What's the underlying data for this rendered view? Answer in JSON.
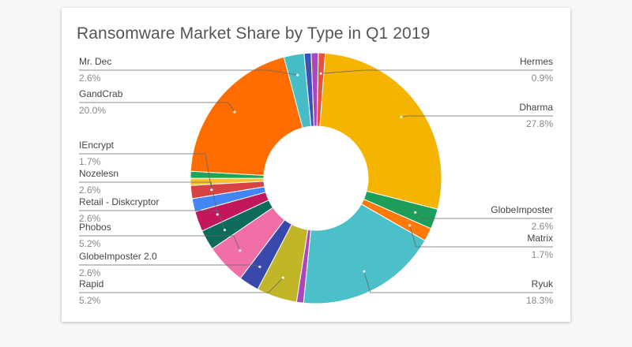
{
  "chart_data": {
    "type": "pie",
    "title": "Ransomware Market Share by Type in Q1 2019",
    "donut": true,
    "slices": [
      {
        "label": "Hermes",
        "value": 0.9,
        "display": "0.9%",
        "color": "#e8513b"
      },
      {
        "label": "Dharma",
        "value": 27.8,
        "display": "27.8%",
        "color": "#f4b400"
      },
      {
        "label": "GlobeImposter",
        "value": 2.6,
        "display": "2.6%",
        "color": "#1e9e5b"
      },
      {
        "label": "Matrix",
        "value": 1.7,
        "display": "1.7%",
        "color": "#ff7a0a"
      },
      {
        "label": "Ryuk",
        "value": 18.3,
        "display": "18.3%",
        "color": "#4bc0c8"
      },
      {
        "label": "",
        "value": 0.9,
        "display": "",
        "color": "#ab47bc"
      },
      {
        "label": "Rapid",
        "value": 5.2,
        "display": "5.2%",
        "color": "#c0b628"
      },
      {
        "label": "GlobeImposter 2.0",
        "value": 2.6,
        "display": "2.6%",
        "color": "#3949ab"
      },
      {
        "label": "Phobos",
        "value": 5.2,
        "display": "5.2%",
        "color": "#f06fa7"
      },
      {
        "label": "Retail - Diskcryptor",
        "value": 2.6,
        "display": "2.6%",
        "color": "#0c6b5a"
      },
      {
        "label": "Nozelesn",
        "value": 2.6,
        "display": "2.6%",
        "color": "#c2185b"
      },
      {
        "label": "",
        "value": 1.7,
        "display": "",
        "color": "#4285f4"
      },
      {
        "label": "IEncrypt",
        "value": 1.7,
        "display": "1.7%",
        "color": "#d84343"
      },
      {
        "label": "",
        "value": 0.9,
        "display": "",
        "color": "#f9c02e"
      },
      {
        "label": "",
        "value": 0.9,
        "display": "",
        "color": "#21a359"
      },
      {
        "label": "GandCrab",
        "value": 20.0,
        "display": "20.0%",
        "color": "#ff6d00"
      },
      {
        "label": "Mr. Dec",
        "value": 2.6,
        "display": "2.6%",
        "color": "#46bdc6"
      },
      {
        "label": "",
        "value": 0.9,
        "display": "",
        "color": "#3f51b5"
      },
      {
        "label": "",
        "value": 0.9,
        "display": "",
        "color": "#ab47bc"
      }
    ]
  }
}
